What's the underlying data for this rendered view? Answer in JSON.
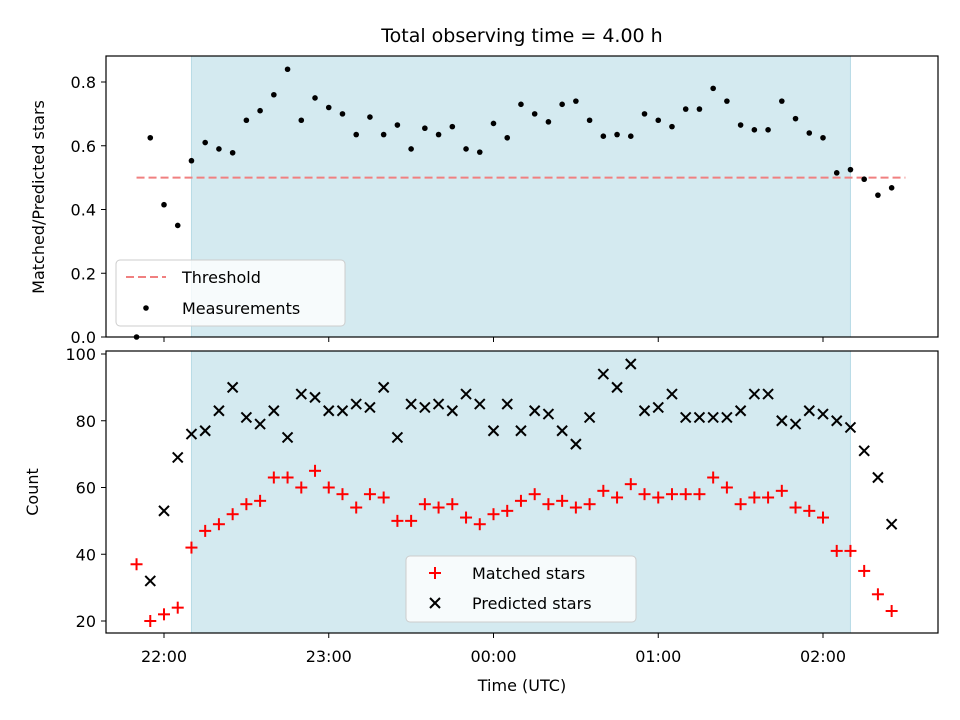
{
  "chart_data": [
    {
      "type": "scatter",
      "title": "Total observing time = 4.00 h",
      "xlabel": "",
      "ylabel": "Matched/Predicted stars",
      "ylim": [
        0,
        0.88
      ],
      "yticks": [
        "0.0",
        "0.2",
        "0.4",
        "0.6",
        "0.8"
      ],
      "shaded_region": {
        "x_start": "22:10",
        "x_end": "02:10",
        "color": "#d4eaf0"
      },
      "threshold": {
        "name": "Threshold",
        "value": 0.5,
        "x_start": "21:50",
        "x_end": "02:30",
        "color": "#f08080",
        "style": "dashed"
      },
      "legend": {
        "placement": "lower-left",
        "entries": [
          "Threshold",
          "Measurements"
        ]
      },
      "series": [
        {
          "name": "Measurements",
          "color": "#000000",
          "marker": "dot",
          "points": [
            [
              "21:50",
              0.0
            ],
            [
              "21:55",
              0.625
            ],
            [
              "22:00",
              0.415
            ],
            [
              "22:05",
              0.35
            ],
            [
              "22:10",
              0.553
            ],
            [
              "22:15",
              0.61
            ],
            [
              "22:20",
              0.59
            ],
            [
              "22:25",
              0.578
            ],
            [
              "22:30",
              0.68
            ],
            [
              "22:35",
              0.71
            ],
            [
              "22:40",
              0.76
            ],
            [
              "22:45",
              0.84
            ],
            [
              "22:50",
              0.68
            ],
            [
              "22:55",
              0.75
            ],
            [
              "23:00",
              0.72
            ],
            [
              "23:05",
              0.7
            ],
            [
              "23:10",
              0.635
            ],
            [
              "23:15",
              0.69
            ],
            [
              "23:20",
              0.635
            ],
            [
              "23:25",
              0.665
            ],
            [
              "23:30",
              0.59
            ],
            [
              "23:35",
              0.655
            ],
            [
              "23:40",
              0.635
            ],
            [
              "23:45",
              0.66
            ],
            [
              "23:50",
              0.59
            ],
            [
              "23:55",
              0.58
            ],
            [
              "00:00",
              0.67
            ],
            [
              "00:05",
              0.625
            ],
            [
              "00:10",
              0.73
            ],
            [
              "00:15",
              0.7
            ],
            [
              "00:20",
              0.675
            ],
            [
              "00:25",
              0.73
            ],
            [
              "00:30",
              0.74
            ],
            [
              "00:35",
              0.68
            ],
            [
              "00:40",
              0.63
            ],
            [
              "00:45",
              0.635
            ],
            [
              "00:50",
              0.63
            ],
            [
              "00:55",
              0.7
            ],
            [
              "01:00",
              0.68
            ],
            [
              "01:05",
              0.66
            ],
            [
              "01:10",
              0.715
            ],
            [
              "01:15",
              0.715
            ],
            [
              "01:20",
              0.78
            ],
            [
              "01:25",
              0.74
            ],
            [
              "01:30",
              0.665
            ],
            [
              "01:35",
              0.65
            ],
            [
              "01:40",
              0.65
            ],
            [
              "01:45",
              0.74
            ],
            [
              "01:50",
              0.685
            ],
            [
              "01:55",
              0.64
            ],
            [
              "02:00",
              0.625
            ],
            [
              "02:05",
              0.515
            ],
            [
              "02:10",
              0.525
            ],
            [
              "02:15",
              0.495
            ],
            [
              "02:20",
              0.445
            ],
            [
              "02:25",
              0.468
            ]
          ]
        }
      ]
    },
    {
      "type": "scatter",
      "title": "",
      "xlabel": "Time (UTC)",
      "ylabel": "Count",
      "ylim": [
        16,
        101
      ],
      "yticks": [
        "20",
        "40",
        "60",
        "80",
        "100"
      ],
      "xticks": [
        "22:00",
        "23:00",
        "00:00",
        "01:00",
        "02:00"
      ],
      "shaded_region": {
        "x_start": "22:10",
        "x_end": "02:10",
        "color": "#d4eaf0"
      },
      "legend": {
        "placement": "lower-center",
        "entries": [
          "Matched stars",
          "Predicted stars"
        ]
      },
      "series": [
        {
          "name": "Matched stars",
          "color": "#ff0000",
          "marker": "plus",
          "points": [
            [
              "21:50",
              37
            ],
            [
              "21:55",
              20
            ],
            [
              "22:00",
              22
            ],
            [
              "22:05",
              24
            ],
            [
              "22:10",
              42
            ],
            [
              "22:15",
              47
            ],
            [
              "22:20",
              49
            ],
            [
              "22:25",
              52
            ],
            [
              "22:30",
              55
            ],
            [
              "22:35",
              56
            ],
            [
              "22:40",
              63
            ],
            [
              "22:45",
              63
            ],
            [
              "22:50",
              60
            ],
            [
              "22:55",
              65
            ],
            [
              "23:00",
              60
            ],
            [
              "23:05",
              58
            ],
            [
              "23:10",
              54
            ],
            [
              "23:15",
              58
            ],
            [
              "23:20",
              57
            ],
            [
              "23:25",
              50
            ],
            [
              "23:30",
              50
            ],
            [
              "23:35",
              55
            ],
            [
              "23:40",
              54
            ],
            [
              "23:45",
              55
            ],
            [
              "23:50",
              51
            ],
            [
              "23:55",
              49
            ],
            [
              "00:00",
              52
            ],
            [
              "00:05",
              53
            ],
            [
              "00:10",
              56
            ],
            [
              "00:15",
              58
            ],
            [
              "00:20",
              55
            ],
            [
              "00:25",
              56
            ],
            [
              "00:30",
              54
            ],
            [
              "00:35",
              55
            ],
            [
              "00:40",
              59
            ],
            [
              "00:45",
              57
            ],
            [
              "00:50",
              61
            ],
            [
              "00:55",
              58
            ],
            [
              "01:00",
              57
            ],
            [
              "01:05",
              58
            ],
            [
              "01:10",
              58
            ],
            [
              "01:15",
              58
            ],
            [
              "01:20",
              63
            ],
            [
              "01:25",
              60
            ],
            [
              "01:30",
              55
            ],
            [
              "01:35",
              57
            ],
            [
              "01:40",
              57
            ],
            [
              "01:45",
              59
            ],
            [
              "01:50",
              54
            ],
            [
              "01:55",
              53
            ],
            [
              "02:00",
              51
            ],
            [
              "02:05",
              41
            ],
            [
              "02:10",
              41
            ],
            [
              "02:15",
              35
            ],
            [
              "02:20",
              28
            ],
            [
              "02:25",
              23
            ]
          ]
        },
        {
          "name": "Predicted stars",
          "color": "#000000",
          "marker": "x",
          "points": [
            [
              "21:55",
              32
            ],
            [
              "22:00",
              53
            ],
            [
              "22:05",
              69
            ],
            [
              "22:10",
              76
            ],
            [
              "22:15",
              77
            ],
            [
              "22:20",
              83
            ],
            [
              "22:25",
              90
            ],
            [
              "22:30",
              81
            ],
            [
              "22:35",
              79
            ],
            [
              "22:40",
              83
            ],
            [
              "22:45",
              75
            ],
            [
              "22:50",
              88
            ],
            [
              "22:55",
              87
            ],
            [
              "23:00",
              83
            ],
            [
              "23:05",
              83
            ],
            [
              "23:10",
              85
            ],
            [
              "23:15",
              84
            ],
            [
              "23:20",
              90
            ],
            [
              "23:25",
              75
            ],
            [
              "23:30",
              85
            ],
            [
              "23:35",
              84
            ],
            [
              "23:40",
              85
            ],
            [
              "23:45",
              83
            ],
            [
              "23:50",
              88
            ],
            [
              "23:55",
              85
            ],
            [
              "00:00",
              77
            ],
            [
              "00:05",
              85
            ],
            [
              "00:10",
              77
            ],
            [
              "00:15",
              83
            ],
            [
              "00:20",
              82
            ],
            [
              "00:25",
              77
            ],
            [
              "00:30",
              73
            ],
            [
              "00:35",
              81
            ],
            [
              "00:40",
              94
            ],
            [
              "00:45",
              90
            ],
            [
              "00:50",
              97
            ],
            [
              "00:55",
              83
            ],
            [
              "01:00",
              84
            ],
            [
              "01:05",
              88
            ],
            [
              "01:10",
              81
            ],
            [
              "01:15",
              81
            ],
            [
              "01:20",
              81
            ],
            [
              "01:25",
              81
            ],
            [
              "01:30",
              83
            ],
            [
              "01:35",
              88
            ],
            [
              "01:40",
              88
            ],
            [
              "01:45",
              80
            ],
            [
              "01:50",
              79
            ],
            [
              "01:55",
              83
            ],
            [
              "02:00",
              82
            ],
            [
              "02:05",
              80
            ],
            [
              "02:10",
              78
            ],
            [
              "02:15",
              71
            ],
            [
              "02:20",
              63
            ],
            [
              "02:25",
              49
            ]
          ]
        }
      ]
    }
  ]
}
